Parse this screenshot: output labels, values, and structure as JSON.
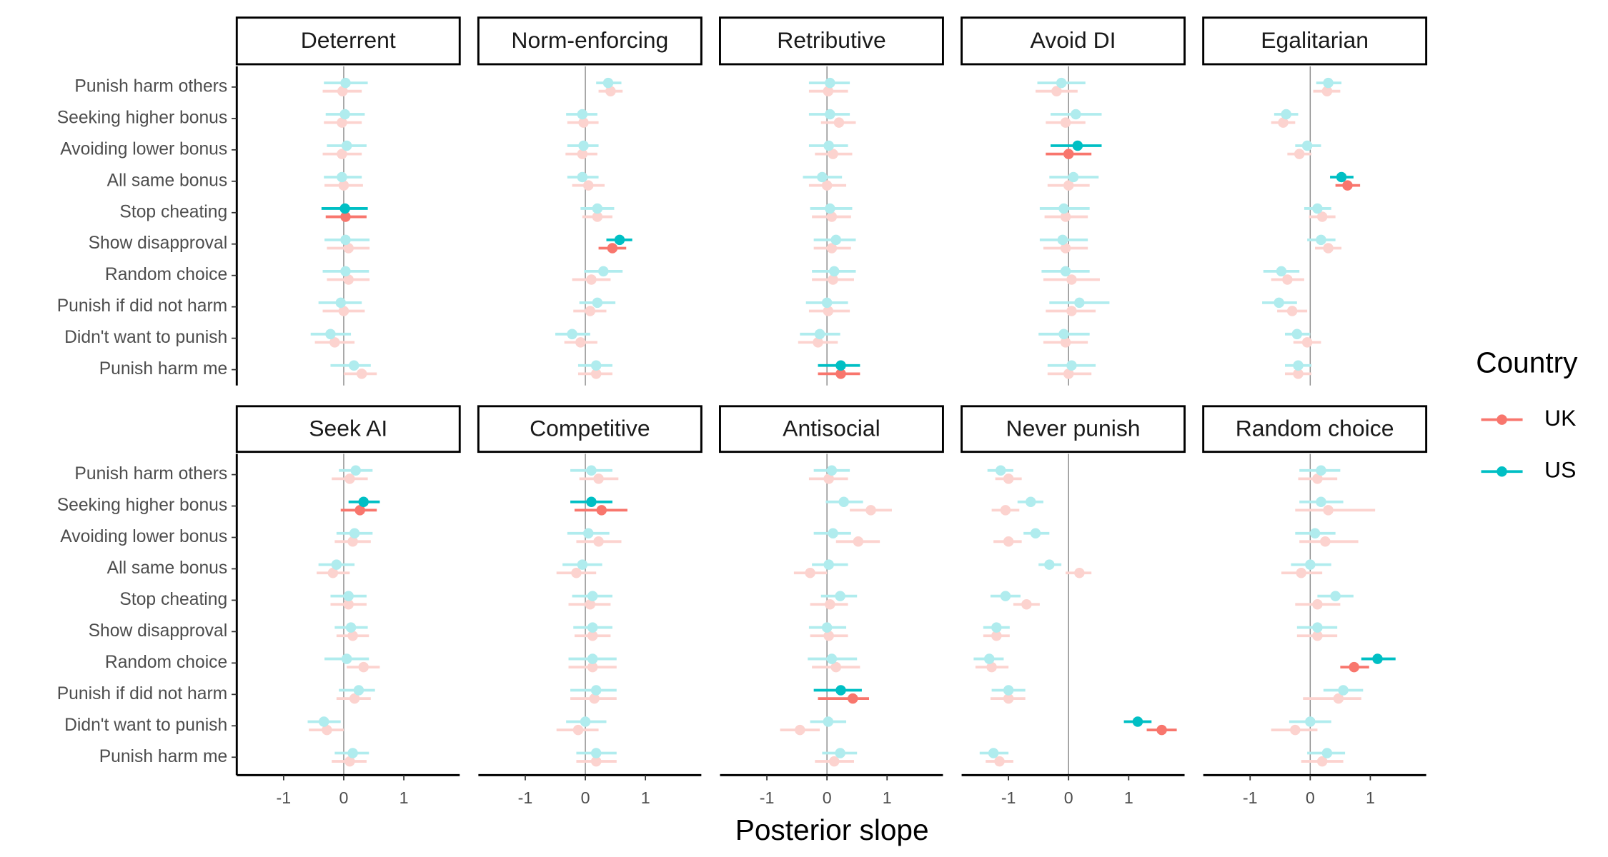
{
  "chart_data": {
    "type": "dot-interval",
    "xlabel": "Posterior slope",
    "legend_title": "Country",
    "xlim": [
      -1.78,
      1.93
    ],
    "xticks": [
      -1,
      0,
      1
    ],
    "reference_line": 0,
    "categories": [
      "Punish harm others",
      "Seeking higher bonus",
      "Avoiding lower bonus",
      "All same bonus",
      "Stop cheating",
      "Show disapproval",
      "Random choice",
      "Punish if did not harm",
      "Didn't want to punish",
      "Punish harm me"
    ],
    "series": [
      {
        "name": "UK",
        "color": "#f8766d",
        "faded_color": "#fcd3cf"
      },
      {
        "name": "US",
        "color": "#00bfc4",
        "faded_color": "#b0ecee"
      }
    ],
    "panels": [
      {
        "title": "Deterrent",
        "highlight": 4,
        "series": [
          {
            "values": [
              -0.02,
              -0.03,
              -0.03,
              0.0,
              0.03,
              0.08,
              0.08,
              0.0,
              -0.15,
              0.3
            ],
            "lower": [
              -0.35,
              -0.33,
              -0.35,
              -0.32,
              -0.3,
              -0.28,
              -0.28,
              -0.35,
              -0.48,
              0.0
            ],
            "upper": [
              0.3,
              0.3,
              0.3,
              0.32,
              0.38,
              0.43,
              0.43,
              0.35,
              0.18,
              0.55
            ]
          },
          {
            "values": [
              0.03,
              0.02,
              0.05,
              -0.03,
              0.02,
              0.03,
              0.03,
              -0.05,
              -0.22,
              0.17
            ],
            "lower": [
              -0.33,
              -0.3,
              -0.28,
              -0.33,
              -0.37,
              -0.32,
              -0.35,
              -0.42,
              -0.55,
              -0.22
            ],
            "upper": [
              0.4,
              0.35,
              0.38,
              0.3,
              0.4,
              0.43,
              0.42,
              0.3,
              0.12,
              0.45
            ]
          }
        ]
      },
      {
        "title": "Norm-enforcing",
        "highlight": 5,
        "series": [
          {
            "values": [
              0.42,
              -0.03,
              -0.05,
              0.05,
              0.2,
              0.45,
              0.1,
              0.08,
              -0.08,
              0.18
            ],
            "lower": [
              0.22,
              -0.3,
              -0.33,
              -0.22,
              -0.05,
              0.22,
              -0.22,
              -0.2,
              -0.35,
              -0.12
            ],
            "upper": [
              0.62,
              0.22,
              0.2,
              0.32,
              0.45,
              0.68,
              0.42,
              0.35,
              0.2,
              0.45
            ]
          },
          {
            "values": [
              0.38,
              -0.05,
              -0.03,
              -0.05,
              0.2,
              0.57,
              0.3,
              0.2,
              -0.22,
              0.18
            ],
            "lower": [
              0.18,
              -0.32,
              -0.3,
              -0.3,
              -0.08,
              0.35,
              -0.02,
              -0.1,
              -0.5,
              -0.12
            ],
            "upper": [
              0.6,
              0.2,
              0.22,
              0.22,
              0.48,
              0.78,
              0.62,
              0.5,
              0.08,
              0.45
            ]
          }
        ]
      },
      {
        "title": "Retributive",
        "highlight": 9,
        "series": [
          {
            "values": [
              0.02,
              0.2,
              0.1,
              0.0,
              0.08,
              0.08,
              0.1,
              0.02,
              -0.15,
              0.23
            ],
            "lower": [
              -0.3,
              -0.1,
              -0.2,
              -0.3,
              -0.25,
              -0.22,
              -0.25,
              -0.3,
              -0.48,
              -0.15
            ],
            "upper": [
              0.35,
              0.48,
              0.42,
              0.32,
              0.4,
              0.4,
              0.45,
              0.38,
              0.18,
              0.55
            ]
          },
          {
            "values": [
              0.05,
              0.05,
              0.03,
              -0.08,
              0.05,
              0.15,
              0.12,
              0.0,
              -0.12,
              0.23
            ],
            "lower": [
              -0.3,
              -0.3,
              -0.3,
              -0.4,
              -0.28,
              -0.22,
              -0.25,
              -0.35,
              -0.45,
              -0.15
            ],
            "upper": [
              0.38,
              0.38,
              0.35,
              0.25,
              0.42,
              0.48,
              0.48,
              0.35,
              0.22,
              0.55
            ]
          }
        ]
      },
      {
        "title": "Avoid DI",
        "highlight": 2,
        "series": [
          {
            "values": [
              -0.2,
              -0.05,
              0.0,
              0.0,
              -0.05,
              -0.05,
              0.05,
              0.05,
              -0.05,
              0.0
            ],
            "lower": [
              -0.55,
              -0.38,
              -0.38,
              -0.35,
              -0.4,
              -0.42,
              -0.42,
              -0.38,
              -0.42,
              -0.35
            ],
            "upper": [
              0.15,
              0.28,
              0.38,
              0.35,
              0.32,
              0.32,
              0.52,
              0.45,
              0.32,
              0.38
            ]
          },
          {
            "values": [
              -0.12,
              0.12,
              0.15,
              0.08,
              -0.08,
              -0.1,
              -0.05,
              0.18,
              -0.08,
              0.05
            ],
            "lower": [
              -0.52,
              -0.3,
              -0.3,
              -0.32,
              -0.48,
              -0.48,
              -0.45,
              -0.32,
              -0.5,
              -0.35
            ],
            "upper": [
              0.28,
              0.55,
              0.55,
              0.5,
              0.35,
              0.32,
              0.35,
              0.68,
              0.35,
              0.45
            ]
          }
        ]
      },
      {
        "title": "Egalitarian",
        "highlight": 3,
        "series": [
          {
            "values": [
              0.28,
              -0.45,
              -0.18,
              0.62,
              0.2,
              0.3,
              -0.38,
              -0.3,
              -0.05,
              -0.2
            ],
            "lower": [
              0.05,
              -0.65,
              -0.38,
              0.42,
              -0.02,
              0.08,
              -0.65,
              -0.55,
              -0.28,
              -0.42
            ],
            "upper": [
              0.5,
              -0.25,
              0.02,
              0.83,
              0.42,
              0.52,
              -0.1,
              -0.05,
              0.18,
              0.02
            ]
          },
          {
            "values": [
              0.3,
              -0.4,
              -0.05,
              0.52,
              0.12,
              0.18,
              -0.48,
              -0.52,
              -0.22,
              -0.2
            ],
            "lower": [
              0.1,
              -0.6,
              -0.25,
              0.33,
              -0.1,
              -0.05,
              -0.78,
              -0.8,
              -0.42,
              -0.42
            ],
            "upper": [
              0.52,
              -0.2,
              0.18,
              0.72,
              0.35,
              0.42,
              -0.18,
              -0.22,
              0.0,
              0.02
            ]
          }
        ]
      },
      {
        "title": "Seek AI",
        "highlight": 1,
        "series": [
          {
            "values": [
              0.1,
              0.27,
              0.15,
              -0.18,
              0.08,
              0.15,
              0.33,
              0.18,
              -0.28,
              0.1
            ],
            "lower": [
              -0.2,
              -0.05,
              -0.15,
              -0.45,
              -0.22,
              -0.12,
              0.05,
              -0.12,
              -0.58,
              -0.2
            ],
            "upper": [
              0.4,
              0.55,
              0.45,
              0.1,
              0.38,
              0.42,
              0.6,
              0.45,
              0.0,
              0.38
            ]
          },
          {
            "values": [
              0.2,
              0.33,
              0.18,
              -0.12,
              0.08,
              0.12,
              0.05,
              0.25,
              -0.33,
              0.15
            ],
            "lower": [
              -0.08,
              0.08,
              -0.12,
              -0.42,
              -0.22,
              -0.15,
              -0.32,
              -0.08,
              -0.6,
              -0.15
            ],
            "upper": [
              0.48,
              0.6,
              0.48,
              0.18,
              0.38,
              0.4,
              0.42,
              0.52,
              -0.05,
              0.42
            ]
          }
        ]
      },
      {
        "title": "Competitive",
        "highlight": 1,
        "series": [
          {
            "values": [
              0.22,
              0.27,
              0.22,
              -0.15,
              0.08,
              0.12,
              0.12,
              0.15,
              -0.12,
              0.18
            ],
            "lower": [
              -0.1,
              -0.18,
              -0.15,
              -0.48,
              -0.28,
              -0.18,
              -0.28,
              -0.25,
              -0.48,
              -0.15
            ],
            "upper": [
              0.55,
              0.7,
              0.6,
              0.18,
              0.42,
              0.42,
              0.52,
              0.52,
              0.22,
              0.52
            ]
          },
          {
            "values": [
              0.1,
              0.1,
              0.05,
              -0.05,
              0.12,
              0.12,
              0.12,
              0.18,
              0.0,
              0.18
            ],
            "lower": [
              -0.25,
              -0.25,
              -0.3,
              -0.38,
              -0.22,
              -0.2,
              -0.28,
              -0.25,
              -0.32,
              -0.15
            ],
            "upper": [
              0.45,
              0.45,
              0.4,
              0.28,
              0.45,
              0.45,
              0.52,
              0.52,
              0.35,
              0.52
            ]
          }
        ]
      },
      {
        "title": "Antisocial",
        "highlight": 7,
        "series": [
          {
            "values": [
              0.03,
              0.73,
              0.52,
              -0.28,
              0.05,
              0.03,
              0.15,
              0.43,
              -0.45,
              0.12
            ],
            "lower": [
              -0.3,
              0.38,
              0.15,
              -0.55,
              -0.28,
              -0.28,
              -0.25,
              -0.15,
              -0.78,
              -0.2
            ],
            "upper": [
              0.35,
              1.08,
              0.88,
              0.0,
              0.35,
              0.35,
              0.55,
              0.7,
              -0.12,
              0.45
            ]
          },
          {
            "values": [
              0.08,
              0.28,
              0.1,
              0.03,
              0.22,
              0.0,
              0.08,
              0.23,
              0.02,
              0.22
            ],
            "lower": [
              -0.22,
              -0.02,
              -0.22,
              -0.25,
              -0.1,
              -0.3,
              -0.32,
              -0.22,
              -0.28,
              -0.08
            ],
            "upper": [
              0.38,
              0.6,
              0.4,
              0.35,
              0.5,
              0.32,
              0.5,
              0.58,
              0.32,
              0.5
            ]
          }
        ]
      },
      {
        "title": "Never punish",
        "highlight": 8,
        "series": [
          {
            "values": [
              -1.0,
              -1.05,
              -1.0,
              0.18,
              -0.7,
              -1.2,
              -1.28,
              -1.0,
              1.55,
              -1.15
            ],
            "lower": [
              -1.22,
              -1.28,
              -1.25,
              -0.05,
              -0.92,
              -1.42,
              -1.55,
              -1.3,
              1.3,
              -1.38
            ],
            "upper": [
              -0.78,
              -0.82,
              -0.78,
              0.38,
              -0.48,
              -0.98,
              -1.0,
              -0.72,
              1.8,
              -0.92
            ]
          },
          {
            "values": [
              -1.13,
              -0.63,
              -0.55,
              -0.32,
              -1.05,
              -1.2,
              -1.32,
              -1.0,
              1.15,
              -1.25
            ],
            "lower": [
              -1.35,
              -0.85,
              -0.75,
              -0.5,
              -1.3,
              -1.42,
              -1.58,
              -1.28,
              0.92,
              -1.48
            ],
            "upper": [
              -0.92,
              -0.42,
              -0.32,
              -0.12,
              -0.8,
              -0.98,
              -1.08,
              -0.72,
              1.38,
              -1.0
            ]
          }
        ]
      },
      {
        "title": "Random choice",
        "highlight": 6,
        "series": [
          {
            "values": [
              0.12,
              0.3,
              0.25,
              -0.15,
              0.12,
              0.12,
              0.73,
              0.47,
              -0.25,
              0.2
            ],
            "lower": [
              -0.2,
              -0.25,
              -0.18,
              -0.48,
              -0.25,
              -0.22,
              0.5,
              -0.12,
              -0.65,
              -0.15
            ],
            "upper": [
              0.45,
              1.08,
              0.8,
              0.2,
              0.5,
              0.45,
              0.98,
              0.85,
              0.12,
              0.55
            ]
          },
          {
            "values": [
              0.18,
              0.18,
              0.08,
              0.0,
              0.42,
              0.12,
              1.12,
              0.55,
              0.0,
              0.28
            ],
            "lower": [
              -0.18,
              -0.18,
              -0.25,
              -0.32,
              0.12,
              -0.22,
              0.85,
              0.22,
              -0.35,
              -0.05
            ],
            "upper": [
              0.5,
              0.55,
              0.42,
              0.35,
              0.72,
              0.45,
              1.42,
              0.88,
              0.35,
              0.58
            ]
          }
        ]
      }
    ]
  }
}
